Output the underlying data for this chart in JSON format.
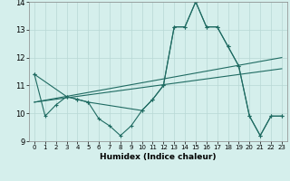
{
  "xlabel": "Humidex (Indice chaleur)",
  "xlim": [
    -0.5,
    23.5
  ],
  "ylim": [
    9,
    14
  ],
  "yticks": [
    9,
    10,
    11,
    12,
    13,
    14
  ],
  "xticks": [
    0,
    1,
    2,
    3,
    4,
    5,
    6,
    7,
    8,
    9,
    10,
    11,
    12,
    13,
    14,
    15,
    16,
    17,
    18,
    19,
    20,
    21,
    22,
    23
  ],
  "background_color": "#d5efec",
  "grid_color": "#b8d8d4",
  "line_color": "#1f6b62",
  "lines": [
    {
      "x": [
        0,
        1,
        2,
        3,
        4,
        5,
        6,
        7,
        8,
        9,
        10,
        11,
        12,
        13,
        14,
        15,
        16,
        17,
        18,
        19,
        20,
        21,
        22,
        23
      ],
      "y": [
        11.4,
        9.9,
        10.3,
        10.6,
        10.5,
        10.4,
        9.8,
        9.55,
        9.2,
        9.55,
        10.1,
        10.5,
        11.0,
        13.1,
        13.1,
        14.0,
        13.1,
        13.1,
        12.4,
        11.7,
        9.9,
        9.2,
        9.9,
        9.9
      ]
    },
    {
      "x": [
        0,
        3,
        4,
        5,
        10,
        11,
        12,
        13,
        14,
        15,
        16,
        17,
        18,
        19,
        20,
        21,
        22,
        23
      ],
      "y": [
        11.4,
        10.6,
        10.5,
        10.4,
        10.1,
        10.5,
        11.0,
        13.1,
        13.1,
        14.0,
        13.1,
        13.1,
        12.4,
        11.7,
        9.9,
        9.2,
        9.9,
        9.9
      ]
    },
    {
      "x": [
        0,
        18,
        19,
        23
      ],
      "y": [
        10.4,
        12.15,
        11.7,
        11.85
      ]
    },
    {
      "x": [
        0,
        18,
        19,
        23
      ],
      "y": [
        10.4,
        11.55,
        11.7,
        11.85
      ]
    }
  ]
}
